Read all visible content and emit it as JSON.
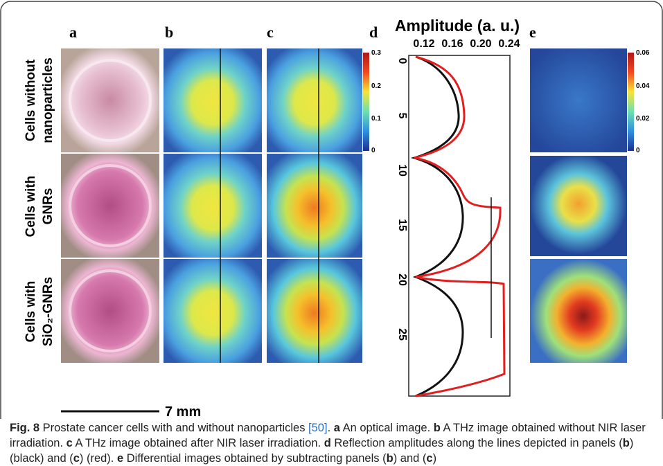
{
  "panel_letters": [
    "a",
    "b",
    "c",
    "d",
    "e"
  ],
  "rows": [
    {
      "lines": [
        "Cells without",
        "nanoparticles"
      ]
    },
    {
      "lines": [
        "Cells with",
        "GNRs"
      ]
    },
    {
      "lines": [
        "Cells with",
        "SiO₂-GNRs"
      ]
    }
  ],
  "colorbar_bc": {
    "labels": [
      "0.3",
      "0.2",
      "0.1",
      "0"
    ]
  },
  "colorbar_e": {
    "labels": [
      "0.06",
      "0.04",
      "0.02",
      "0"
    ]
  },
  "plot_d": {
    "title": "Amplitude (a. u.)",
    "xticks": [
      "0.12",
      "0.16",
      "0.20",
      "0.24"
    ],
    "yticks": [
      "0",
      "5",
      "10",
      "15",
      "20",
      "25"
    ]
  },
  "scale_bar": "7 mm",
  "caption": {
    "segments": [
      "Fig. 8",
      " Prostate cancer cells with and without nanoparticles ",
      "[50]",
      ". ",
      "a",
      " An optical image. ",
      "b",
      " A THz image obtained without NIR laser irradiation. ",
      "c",
      " A THz image obtained after NIR laser irradiation. ",
      "d",
      " Reflection amplitudes along the lines depicted in panels (",
      "b",
      ") (black) and (",
      "c",
      ") (red). ",
      "e",
      " Differential images obtained by subtracting panels (",
      "b",
      ") and (",
      "c",
      ")"
    ]
  }
}
